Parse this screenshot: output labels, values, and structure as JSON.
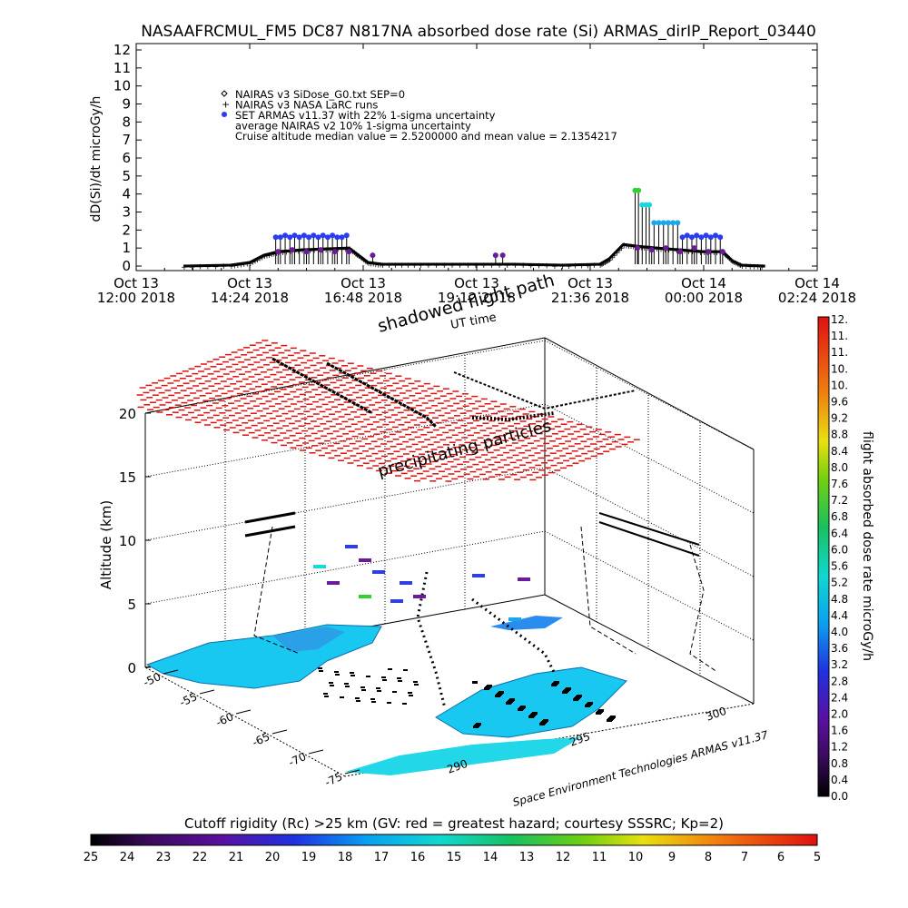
{
  "title": "NASAAFRCMUL_FM5 DC87 N817NA absorbed dose rate (Si) ARMAS_dirIP_Report_03440",
  "chart_data": [
    {
      "type": "scatter",
      "ylabel": "dD(Si)/dt microGy/h",
      "ylim": [
        0,
        12
      ],
      "yticks": [
        "0",
        "1",
        "2",
        "3",
        "4",
        "5",
        "6",
        "7",
        "8",
        "9",
        "10",
        "11",
        "12"
      ],
      "xticks": [
        {
          "l1": "Oct 13",
          "l2": "12:00 2018"
        },
        {
          "l1": "Oct 13",
          "l2": "14:24 2018"
        },
        {
          "l1": "Oct 13",
          "l2": "16:48 2018"
        },
        {
          "l1": "Oct 13",
          "l2": "19:12 2018"
        },
        {
          "l1": "Oct 13",
          "l2": "21:36 2018"
        },
        {
          "l1": "Oct 14",
          "l2": "00:00 2018"
        },
        {
          "l1": "Oct 14",
          "l2": "02:24 2018"
        }
      ],
      "legend": [
        {
          "marker": "diamond",
          "text": "NAIRAS v3 SiDose_G0.txt SEP=0"
        },
        {
          "marker": "plus",
          "text": "NAIRAS v3 NASA LaRC runs"
        },
        {
          "marker": "dot",
          "text": "SET ARMAS v11.37 with 22% 1-sigma uncertainty"
        },
        {
          "marker": "none",
          "text": "average NAIRAS v2 10% 1-sigma uncertainty"
        },
        {
          "marker": "none",
          "text": "Cruise altitude median value = 2.5200000 and mean value = 2.1354217"
        }
      ],
      "series": [
        {
          "name": "SET ARMAS v11.37",
          "points": [
            [
              14.95,
              1.6
            ],
            [
              15.05,
              1.6
            ],
            [
              15.15,
              1.7
            ],
            [
              15.25,
              1.6
            ],
            [
              15.35,
              1.7
            ],
            [
              15.45,
              1.6
            ],
            [
              15.55,
              1.7
            ],
            [
              15.65,
              1.6
            ],
            [
              15.75,
              1.7
            ],
            [
              15.85,
              1.6
            ],
            [
              15.95,
              1.7
            ],
            [
              16.05,
              1.6
            ],
            [
              16.15,
              1.7
            ],
            [
              16.25,
              1.6
            ],
            [
              16.35,
              1.6
            ],
            [
              16.45,
              1.7
            ],
            [
              15.0,
              0.8
            ],
            [
              15.3,
              0.9
            ],
            [
              15.6,
              0.8
            ],
            [
              15.9,
              0.9
            ],
            [
              16.2,
              0.8
            ],
            [
              16.5,
              0.8
            ],
            [
              17.0,
              0.6
            ],
            [
              19.6,
              0.6
            ],
            [
              19.75,
              0.6
            ],
            [
              22.55,
              4.2
            ],
            [
              22.62,
              4.2
            ],
            [
              22.7,
              3.4
            ],
            [
              22.78,
              3.4
            ],
            [
              22.85,
              3.4
            ],
            [
              22.95,
              2.4
            ],
            [
              23.05,
              2.4
            ],
            [
              23.15,
              2.4
            ],
            [
              23.25,
              2.4
            ],
            [
              23.35,
              2.4
            ],
            [
              23.45,
              2.4
            ],
            [
              23.55,
              1.6
            ],
            [
              23.65,
              1.7
            ],
            [
              23.75,
              1.6
            ],
            [
              23.85,
              1.7
            ],
            [
              23.95,
              1.6
            ],
            [
              24.05,
              1.7
            ],
            [
              24.15,
              1.6
            ],
            [
              24.25,
              1.7
            ],
            [
              24.35,
              1.6
            ],
            [
              22.6,
              1.0
            ],
            [
              22.9,
              0.9
            ],
            [
              23.2,
              1.0
            ],
            [
              23.5,
              0.8
            ],
            [
              23.8,
              1.0
            ],
            [
              24.1,
              0.8
            ],
            [
              24.4,
              0.8
            ]
          ]
        },
        {
          "name": "NAIRAS v3 SiDose_G0.txt SEP=0",
          "points": [
            [
              13.0,
              0
            ],
            [
              14.0,
              0.05
            ],
            [
              14.4,
              0.2
            ],
            [
              14.7,
              0.6
            ],
            [
              15.0,
              0.8
            ],
            [
              15.5,
              0.9
            ],
            [
              16.0,
              0.95
            ],
            [
              16.5,
              1.0
            ],
            [
              16.7,
              0.6
            ],
            [
              16.9,
              0.2
            ],
            [
              17.2,
              0.1
            ],
            [
              18.0,
              0.1
            ],
            [
              19.0,
              0.1
            ],
            [
              20.0,
              0.1
            ],
            [
              21.0,
              0.05
            ],
            [
              21.8,
              0.1
            ],
            [
              22.0,
              0.4
            ],
            [
              22.3,
              1.2
            ],
            [
              22.6,
              1.1
            ],
            [
              23.0,
              1.0
            ],
            [
              23.5,
              0.9
            ],
            [
              24.0,
              0.8
            ],
            [
              24.4,
              0.8
            ],
            [
              24.6,
              0.3
            ],
            [
              24.8,
              0.05
            ],
            [
              25.3,
              0
            ]
          ]
        }
      ]
    },
    {
      "type": "scatter",
      "title": "",
      "zlabel": "Altitude (km)",
      "zticks": [
        "0",
        "5",
        "10",
        "15",
        "20"
      ],
      "lat_ticks": [
        "-50",
        "-55",
        "-60",
        "-65",
        "-70",
        "-75"
      ],
      "lon_ticks": [
        "290",
        "295",
        "300"
      ],
      "annotations": {
        "flight_path": "shadowed flight path",
        "ut_time": "UT time",
        "particles": "precipitating particles"
      }
    }
  ],
  "dose_colorbar": {
    "label": "flight absorbed dose rate microGy/h",
    "ticks": [
      "0.0",
      "0.4",
      "0.8",
      "1.2",
      "1.6",
      "2.0",
      "2.4",
      "2.8",
      "3.2",
      "3.6",
      "4.0",
      "4.4",
      "4.8",
      "5.2",
      "5.6",
      "6.0",
      "6.4",
      "6.8",
      "7.2",
      "7.6",
      "8.0",
      "8.4",
      "8.8",
      "9.2",
      "9.6",
      "10.",
      "10.",
      "11.",
      "11.",
      "12."
    ]
  },
  "rigidity_colorbar": {
    "label": "Cutoff rigidity (Rc) >25 km (GV: red = greatest hazard; courtesy SSSRC; Kp=2)",
    "ticks": [
      "25",
      "24",
      "23",
      "22",
      "21",
      "20",
      "19",
      "18",
      "17",
      "16",
      "15",
      "14",
      "13",
      "12",
      "11",
      "10",
      "9",
      "8",
      "7",
      "6",
      "5"
    ]
  },
  "credit": "Space Environment Technologies ARMAS v11.37",
  "colors": {
    "armas_blue": "#2a3cf0",
    "armas_purple": "#6a1a9a",
    "armas_cyan": "#19d7e0",
    "armas_green": "#2ed12e",
    "model_black": "#000000",
    "red_grid": "#e01010"
  }
}
